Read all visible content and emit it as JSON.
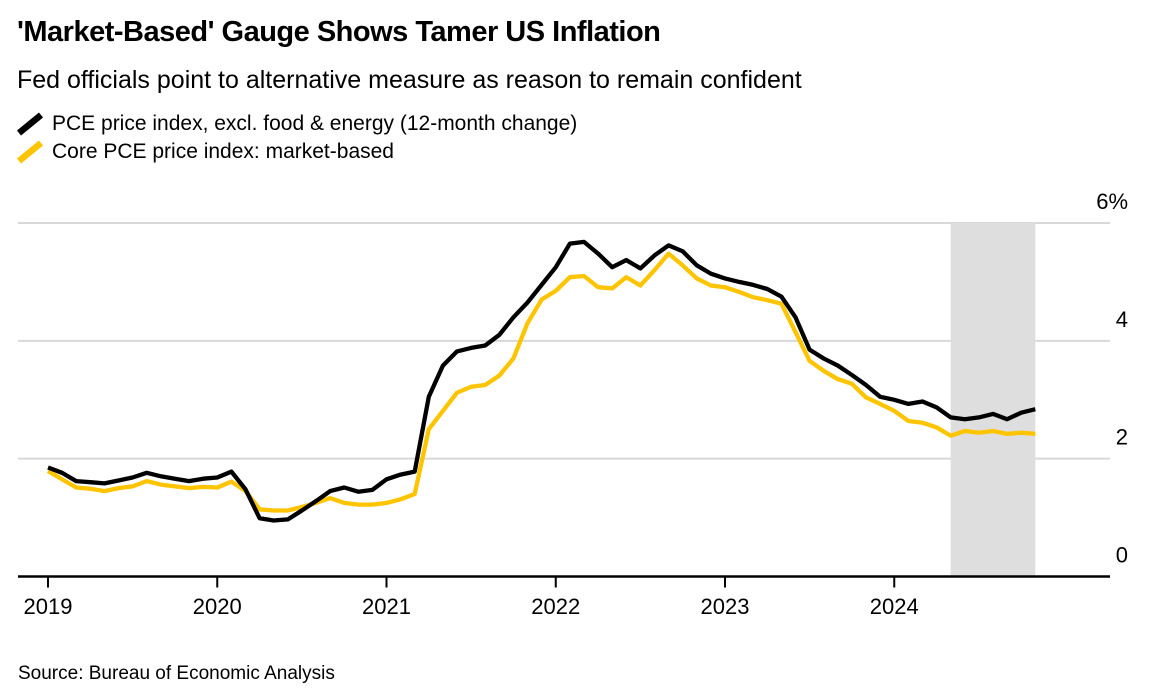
{
  "header": {
    "title": "'Market-Based' Gauge Shows Tamer US Inflation",
    "subtitle": "Fed officials point to alternative measure as reason to remain confident"
  },
  "source_note": "Source: Bureau of Economic Analysis",
  "colors": {
    "accent_black": "#000000",
    "accent_yellow": "#FFC400",
    "gridline": "#D8D8D8",
    "highlight_band": "#DEDEDE",
    "axis": "#000000",
    "text": "#000000",
    "background": "#FFFFFF"
  },
  "chart_data": {
    "type": "line",
    "unit": "%",
    "x": [
      "2019-01",
      "2019-02",
      "2019-03",
      "2019-04",
      "2019-05",
      "2019-06",
      "2019-07",
      "2019-08",
      "2019-09",
      "2019-10",
      "2019-11",
      "2019-12",
      "2020-01",
      "2020-02",
      "2020-03",
      "2020-04",
      "2020-05",
      "2020-06",
      "2020-07",
      "2020-08",
      "2020-09",
      "2020-10",
      "2020-11",
      "2020-12",
      "2021-01",
      "2021-02",
      "2021-03",
      "2021-04",
      "2021-05",
      "2021-06",
      "2021-07",
      "2021-08",
      "2021-09",
      "2021-10",
      "2021-11",
      "2021-12",
      "2022-01",
      "2022-02",
      "2022-03",
      "2022-04",
      "2022-05",
      "2022-06",
      "2022-07",
      "2022-08",
      "2022-09",
      "2022-10",
      "2022-11",
      "2022-12",
      "2023-01",
      "2023-02",
      "2023-03",
      "2023-04",
      "2023-05",
      "2023-06",
      "2023-07",
      "2023-08",
      "2023-09",
      "2023-10",
      "2023-11",
      "2023-12",
      "2024-01",
      "2024-02",
      "2024-03",
      "2024-04",
      "2024-05",
      "2024-06",
      "2024-07",
      "2024-08",
      "2024-09",
      "2024-10",
      "2024-11"
    ],
    "series": [
      {
        "name": "PCE price index, excl. food & energy (12-month change)",
        "color": "#000000",
        "values": [
          1.85,
          1.76,
          1.62,
          1.6,
          1.58,
          1.63,
          1.68,
          1.76,
          1.7,
          1.66,
          1.62,
          1.66,
          1.68,
          1.78,
          1.48,
          0.99,
          0.95,
          0.97,
          1.12,
          1.28,
          1.45,
          1.51,
          1.44,
          1.47,
          1.65,
          1.73,
          1.78,
          3.05,
          3.58,
          3.82,
          3.88,
          3.92,
          4.1,
          4.4,
          4.65,
          4.95,
          5.25,
          5.65,
          5.68,
          5.48,
          5.25,
          5.37,
          5.23,
          5.45,
          5.62,
          5.52,
          5.28,
          5.14,
          5.06,
          5.0,
          4.95,
          4.88,
          4.75,
          4.4,
          3.85,
          3.7,
          3.58,
          3.42,
          3.25,
          3.05,
          3.0,
          2.93,
          2.97,
          2.87,
          2.7,
          2.67,
          2.7,
          2.76,
          2.67,
          2.78,
          2.84
        ]
      },
      {
        "name": "Core PCE price index: market-based",
        "color": "#FFC400",
        "values": [
          1.79,
          1.65,
          1.51,
          1.49,
          1.45,
          1.5,
          1.53,
          1.62,
          1.56,
          1.53,
          1.5,
          1.52,
          1.51,
          1.61,
          1.45,
          1.14,
          1.12,
          1.12,
          1.18,
          1.25,
          1.33,
          1.25,
          1.22,
          1.22,
          1.25,
          1.31,
          1.4,
          2.5,
          2.81,
          3.12,
          3.22,
          3.25,
          3.41,
          3.7,
          4.3,
          4.7,
          4.85,
          5.08,
          5.1,
          4.91,
          4.89,
          5.08,
          4.94,
          5.2,
          5.48,
          5.28,
          5.06,
          4.94,
          4.91,
          4.83,
          4.74,
          4.69,
          4.63,
          4.15,
          3.66,
          3.49,
          3.35,
          3.27,
          3.04,
          2.93,
          2.81,
          2.64,
          2.61,
          2.53,
          2.39,
          2.47,
          2.44,
          2.47,
          2.42,
          2.44,
          2.42
        ]
      }
    ],
    "y_axis": {
      "min": 0,
      "max": 6,
      "side": "right",
      "grid": true,
      "ticks": [
        {
          "value": 0,
          "label": "0"
        },
        {
          "value": 2,
          "label": "2"
        },
        {
          "value": 4,
          "label": "4"
        },
        {
          "value": 6,
          "label": "6%"
        }
      ]
    },
    "x_ticks": [
      "2019",
      "2020",
      "2021",
      "2022",
      "2023",
      "2024"
    ],
    "highlight_band": {
      "from": "2024-05",
      "to": "2024-11"
    },
    "legend_position": "top-left"
  }
}
